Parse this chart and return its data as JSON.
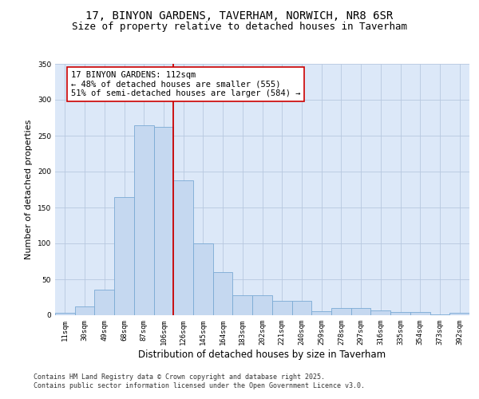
{
  "title_line1": "17, BINYON GARDENS, TAVERHAM, NORWICH, NR8 6SR",
  "title_line2": "Size of property relative to detached houses in Taverham",
  "xlabel": "Distribution of detached houses by size in Taverham",
  "ylabel": "Number of detached properties",
  "categories": [
    "11sqm",
    "30sqm",
    "49sqm",
    "68sqm",
    "87sqm",
    "106sqm",
    "126sqm",
    "145sqm",
    "164sqm",
    "183sqm",
    "202sqm",
    "221sqm",
    "240sqm",
    "259sqm",
    "278sqm",
    "297sqm",
    "316sqm",
    "335sqm",
    "354sqm",
    "373sqm",
    "392sqm"
  ],
  "bar_values": [
    3,
    12,
    36,
    165,
    265,
    262,
    188,
    100,
    60,
    28,
    28,
    20,
    20,
    6,
    10,
    10,
    7,
    4,
    5,
    1,
    3
  ],
  "bar_color": "#c5d8f0",
  "bar_edge_color": "#7aaad4",
  "vline_x": 5.5,
  "vline_color": "#cc0000",
  "annotation_text": "17 BINYON GARDENS: 112sqm\n← 48% of detached houses are smaller (555)\n51% of semi-detached houses are larger (584) →",
  "annotation_box_color": "#ffffff",
  "annotation_box_edge_color": "#cc0000",
  "ylim": [
    0,
    350
  ],
  "yticks": [
    0,
    50,
    100,
    150,
    200,
    250,
    300,
    350
  ],
  "grid_color": "#b8c8e0",
  "background_color": "#dce8f8",
  "footer_text": "Contains HM Land Registry data © Crown copyright and database right 2025.\nContains public sector information licensed under the Open Government Licence v3.0.",
  "title_fontsize": 10,
  "subtitle_fontsize": 9,
  "annotation_fontsize": 7.5,
  "ylabel_fontsize": 8,
  "xlabel_fontsize": 8.5,
  "tick_fontsize": 6.5,
  "footer_fontsize": 6
}
